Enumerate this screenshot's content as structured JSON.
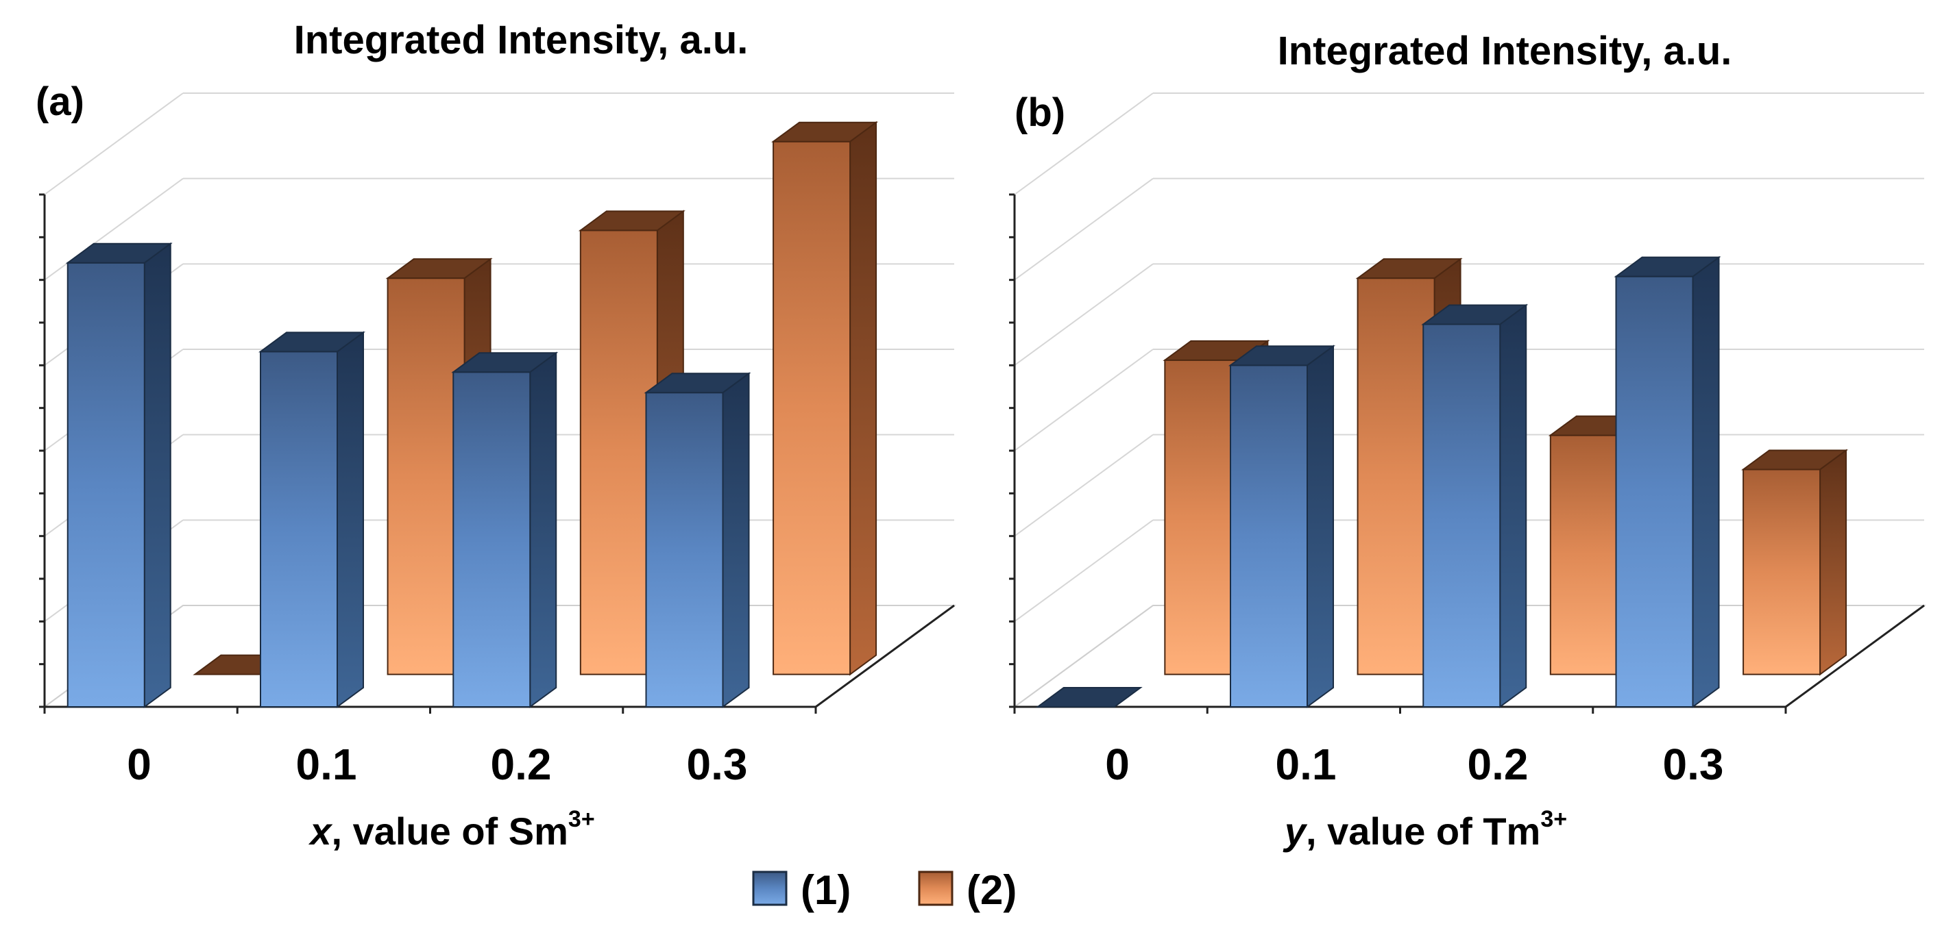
{
  "chart_data": [
    {
      "type": "bar",
      "panel_label": "(a)",
      "title": "Integrated Intensity, a.u.",
      "xlabel": {
        "italic": "x",
        "text": ", value of Sm",
        "sup": "3+"
      },
      "categories": [
        "0",
        "0.1",
        "0.2",
        "0.3"
      ],
      "series": [
        {
          "name": "(1)",
          "values": [
            6.5,
            5.2,
            4.9,
            4.6
          ]
        },
        {
          "name": "(2)",
          "values": [
            0,
            5.8,
            6.5,
            7.8
          ]
        }
      ],
      "ylim": [
        0,
        7.5
      ],
      "grid": true,
      "legend": "bottom-center"
    },
    {
      "type": "bar",
      "panel_label": "(b)",
      "title": "Integrated Intensity, a.u.",
      "xlabel": {
        "italic": "y",
        "text": ", value of Tm",
        "sup": "3+"
      },
      "categories": [
        "0",
        "0.1",
        "0.2",
        "0.3"
      ],
      "series": [
        {
          "name": "(1)",
          "values": [
            0,
            5.0,
            5.6,
            6.3
          ]
        },
        {
          "name": "(2)",
          "values": [
            4.6,
            5.8,
            3.5,
            3.0
          ]
        }
      ],
      "ylim": [
        0,
        7.5
      ],
      "grid": true,
      "legend": "bottom-center"
    }
  ],
  "legend": {
    "items": [
      {
        "label": "(1)",
        "color": "#5a86c2"
      },
      {
        "label": "(2)",
        "color": "#e89a64"
      }
    ]
  },
  "colors": {
    "blue_top": "#3c5a86",
    "blue_mid": "#5a86c2",
    "blue_bottom": "#7aaae6",
    "blue_side": "#2b4666",
    "blue_cap": "#243a58",
    "orange_top": "#a85e34",
    "orange_mid": "#e08a56",
    "orange_bottom": "#ffb07a",
    "orange_side": "#7d4526",
    "orange_cap": "#6a3a1e"
  }
}
